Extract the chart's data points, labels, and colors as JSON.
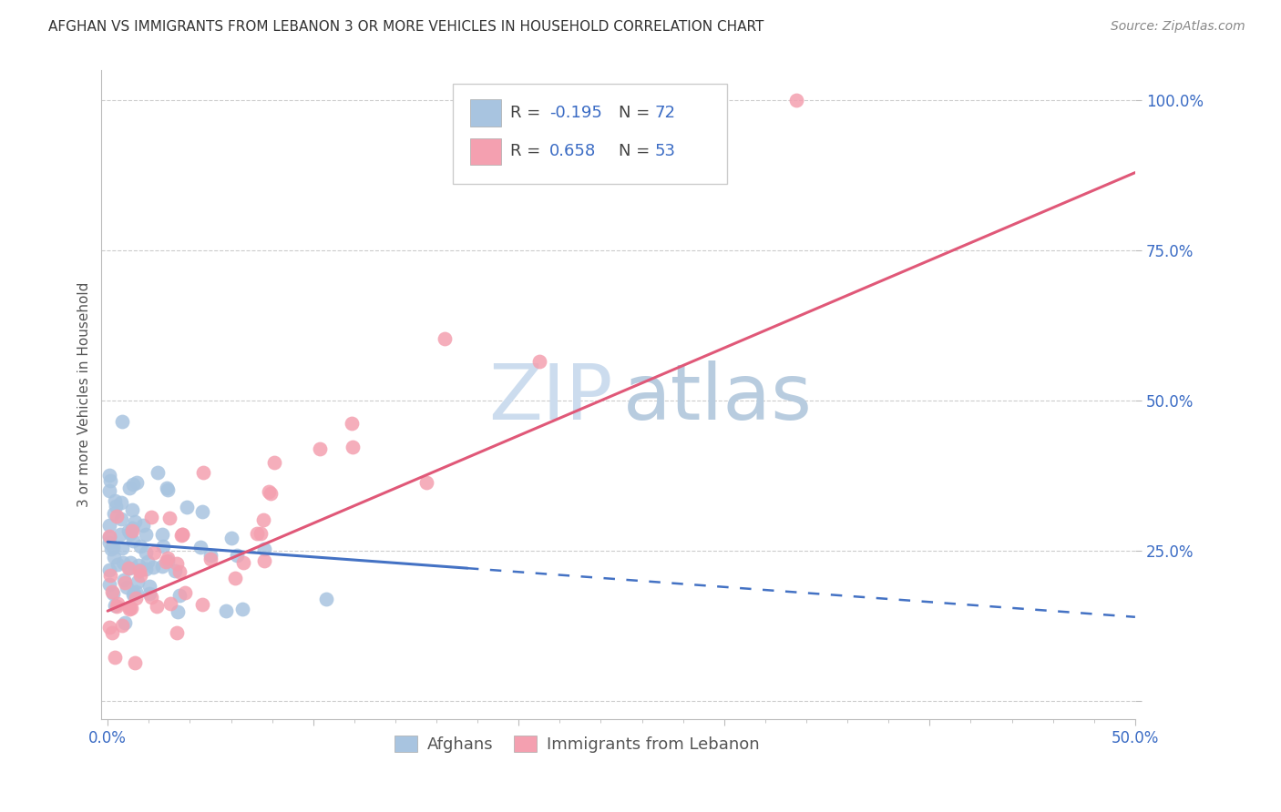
{
  "title": "AFGHAN VS IMMIGRANTS FROM LEBANON 3 OR MORE VEHICLES IN HOUSEHOLD CORRELATION CHART",
  "source": "Source: ZipAtlas.com",
  "ylabel": "3 or more Vehicles in Household",
  "blue_color": "#a8c4e0",
  "pink_color": "#f4a0b0",
  "blue_line_color": "#4472c4",
  "pink_line_color": "#e05878",
  "watermark_zip": "ZIP",
  "watermark_atlas": "atlas",
  "watermark_color": "#dce8f5",
  "bg_color": "#ffffff",
  "grid_color": "#cccccc",
  "xlim": [
    0.0,
    0.5
  ],
  "ylim": [
    -0.03,
    1.05
  ],
  "blue_line_x0": 0.0,
  "blue_line_y0": 0.265,
  "blue_line_x1": 0.2,
  "blue_line_y1": 0.215,
  "blue_line_x2": 0.5,
  "blue_line_y2": 0.14,
  "pink_line_x0": 0.0,
  "pink_line_y0": 0.15,
  "pink_line_x1": 0.5,
  "pink_line_y1": 0.88
}
